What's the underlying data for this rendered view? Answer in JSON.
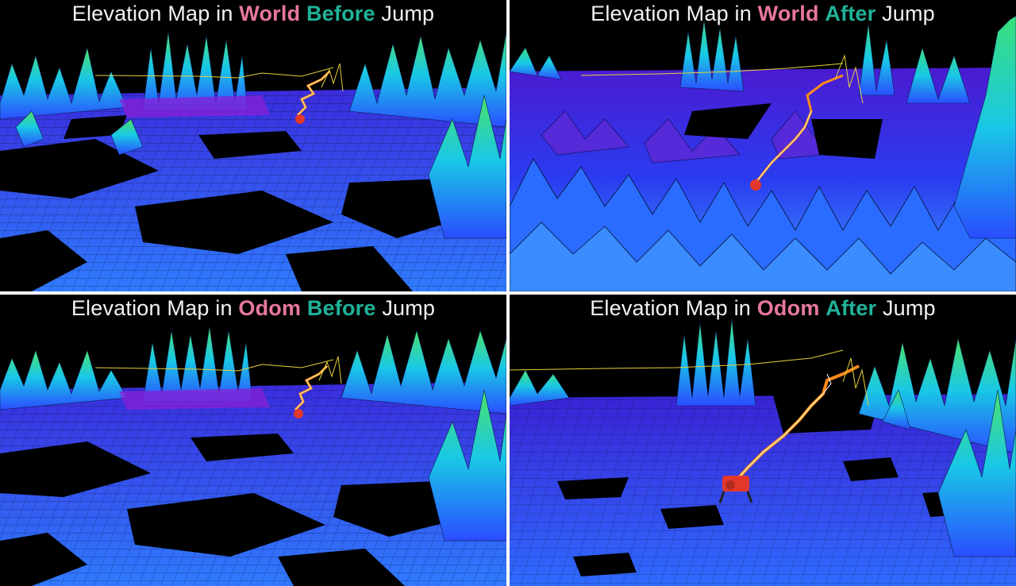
{
  "panels": [
    {
      "id": "world-before",
      "prefix": "Elevation Map in",
      "frame": "World",
      "time": "Before",
      "suffix": "Jump",
      "view": "wide",
      "robot": [
        380,
        150
      ]
    },
    {
      "id": "world-after",
      "prefix": "Elevation Map in",
      "frame": "World",
      "time": "After",
      "suffix": "Jump",
      "view": "near",
      "robot": [
        952,
        232
      ]
    },
    {
      "id": "odom-before",
      "prefix": "Elevation Map in",
      "frame": "Odom",
      "time": "Before",
      "suffix": "Jump",
      "view": "wide",
      "robot": [
        378,
        520
      ]
    },
    {
      "id": "odom-after",
      "prefix": "Elevation Map in",
      "frame": "Odom",
      "time": "After",
      "suffix": "Jump",
      "view": "near",
      "robot": [
        922,
        610
      ]
    }
  ],
  "colors": {
    "background": "#000000",
    "frame_word": "#e8779f",
    "time_word": "#1fb39a",
    "title_text": "#f2f2f2",
    "divider": "#ffffff",
    "terrain_low": "#2a4dff",
    "terrain_mid": "#19c8e6",
    "terrain_high": "#39e07a",
    "terrain_pit": "#8a1fd6",
    "trajectory": "#ff8a1a",
    "trajectory_core": "#fff1a8",
    "robot": "#e2382b"
  }
}
